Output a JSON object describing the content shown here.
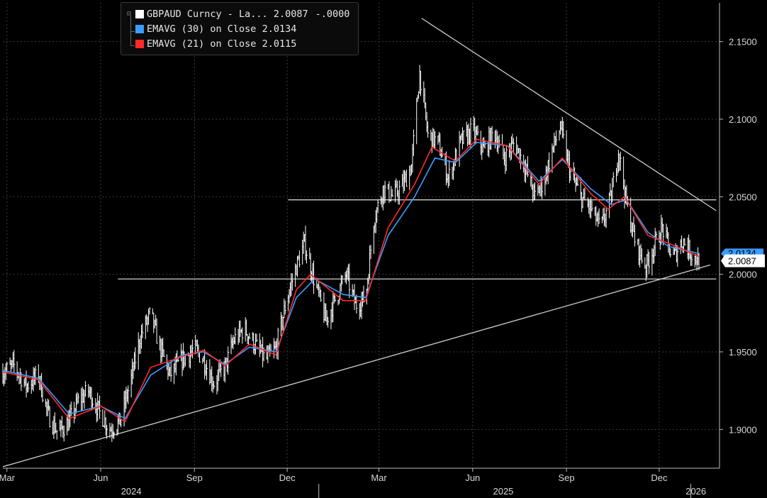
{
  "legend": {
    "rows": [
      {
        "name": "GBPAUD Curncy - La...",
        "value": "2.0087",
        "change": "-.0000",
        "color": "#ffffff"
      },
      {
        "name": "EMAVG (30)  on Close",
        "value": "2.0134",
        "color": "#3b9dff"
      },
      {
        "name": "EMAVG (21)  on Close",
        "value": "2.0115",
        "color": "#ff2a2a"
      }
    ]
  },
  "last_price_label": "2.0087",
  "chart_data": {
    "type": "line",
    "title": "",
    "x_start": "2024-02-26",
    "x_end": "2026-01-09",
    "ylim": [
      1.875,
      2.175
    ],
    "y_ticks": [
      1.9,
      1.95,
      2.0,
      2.05,
      2.1,
      2.15
    ],
    "y_tick_labels": [
      "1.9000",
      "1.9500",
      "2.0000",
      "2.0500",
      "2.1000",
      "2.1500"
    ],
    "month_ticks": [
      {
        "label": "Mar",
        "date": "2024-03-01"
      },
      {
        "label": "Jun",
        "date": "2024-06-01"
      },
      {
        "label": "Sep",
        "date": "2024-09-01"
      },
      {
        "label": "Dec",
        "date": "2024-12-01"
      },
      {
        "label": "Mar",
        "date": "2025-03-01"
      },
      {
        "label": "Jun",
        "date": "2025-06-01"
      },
      {
        "label": "Sep",
        "date": "2025-09-01"
      },
      {
        "label": "Dec",
        "date": "2025-12-01"
      }
    ],
    "year_labels": [
      {
        "label": "2024",
        "date": "2024-07-01"
      },
      {
        "label": "2025",
        "date": "2025-07-01"
      },
      {
        "label": "2026",
        "date": "2026-01-06"
      }
    ],
    "price_series": {
      "name": "GBPAUD Curncy",
      "color": "#ffffff",
      "points": [
        [
          "2024-02-26",
          1.937
        ],
        [
          "2024-03-08",
          1.941
        ],
        [
          "2024-03-20",
          1.928
        ],
        [
          "2024-04-01",
          1.935
        ],
        [
          "2024-04-10",
          1.91
        ],
        [
          "2024-04-20",
          1.898
        ],
        [
          "2024-05-01",
          1.905
        ],
        [
          "2024-05-10",
          1.918
        ],
        [
          "2024-05-20",
          1.925
        ],
        [
          "2024-05-30",
          1.912
        ],
        [
          "2024-06-10",
          1.9
        ],
        [
          "2024-06-20",
          1.905
        ],
        [
          "2024-06-30",
          1.93
        ],
        [
          "2024-07-10",
          1.96
        ],
        [
          "2024-07-20",
          1.975
        ],
        [
          "2024-07-28",
          1.955
        ],
        [
          "2024-08-08",
          1.935
        ],
        [
          "2024-08-20",
          1.945
        ],
        [
          "2024-09-01",
          1.952
        ],
        [
          "2024-09-10",
          1.945
        ],
        [
          "2024-09-20",
          1.93
        ],
        [
          "2024-10-01",
          1.94
        ],
        [
          "2024-10-10",
          1.958
        ],
        [
          "2024-10-20",
          1.965
        ],
        [
          "2024-10-30",
          1.955
        ],
        [
          "2024-11-10",
          1.945
        ],
        [
          "2024-11-20",
          1.952
        ],
        [
          "2024-12-01",
          1.985
        ],
        [
          "2024-12-10",
          2.005
        ],
        [
          "2024-12-18",
          2.02
        ],
        [
          "2024-12-28",
          1.995
        ],
        [
          "2025-01-08",
          1.97
        ],
        [
          "2025-01-18",
          1.985
        ],
        [
          "2025-01-28",
          2.0
        ],
        [
          "2025-02-06",
          1.98
        ],
        [
          "2025-02-16",
          1.985
        ],
        [
          "2025-02-24",
          2.035
        ],
        [
          "2025-03-05",
          2.055
        ],
        [
          "2025-03-15",
          2.05
        ],
        [
          "2025-03-25",
          2.058
        ],
        [
          "2025-04-02",
          2.07
        ],
        [
          "2025-04-10",
          2.13
        ],
        [
          "2025-04-18",
          2.09
        ],
        [
          "2025-04-28",
          2.085
        ],
        [
          "2025-05-08",
          2.062
        ],
        [
          "2025-05-20",
          2.085
        ],
        [
          "2025-06-01",
          2.093
        ],
        [
          "2025-06-12",
          2.08
        ],
        [
          "2025-06-22",
          2.092
        ],
        [
          "2025-07-02",
          2.075
        ],
        [
          "2025-07-12",
          2.085
        ],
        [
          "2025-07-22",
          2.07
        ],
        [
          "2025-08-01",
          2.05
        ],
        [
          "2025-08-10",
          2.06
        ],
        [
          "2025-08-18",
          2.08
        ],
        [
          "2025-08-26",
          2.095
        ],
        [
          "2025-09-05",
          2.065
        ],
        [
          "2025-09-15",
          2.05
        ],
        [
          "2025-09-25",
          2.042
        ],
        [
          "2025-10-05",
          2.03
        ],
        [
          "2025-10-15",
          2.05
        ],
        [
          "2025-10-22",
          2.08
        ],
        [
          "2025-10-30",
          2.045
        ],
        [
          "2025-11-08",
          2.02
        ],
        [
          "2025-11-18",
          2.005
        ],
        [
          "2025-11-26",
          2.018
        ],
        [
          "2025-12-04",
          2.03
        ],
        [
          "2025-12-14",
          2.01
        ],
        [
          "2025-12-24",
          2.022
        ],
        [
          "2026-01-03",
          2.012
        ],
        [
          "2026-01-09",
          2.0087
        ]
      ]
    },
    "ema30": {
      "name": "EMAVG (30)  on Close",
      "color": "#3b9dff",
      "points": [
        [
          "2024-02-26",
          1.938
        ],
        [
          "2024-04-01",
          1.933
        ],
        [
          "2024-05-01",
          1.91
        ],
        [
          "2024-06-01",
          1.915
        ],
        [
          "2024-06-25",
          1.907
        ],
        [
          "2024-07-20",
          1.935
        ],
        [
          "2024-08-20",
          1.948
        ],
        [
          "2024-09-10",
          1.95
        ],
        [
          "2024-10-01",
          1.942
        ],
        [
          "2024-10-25",
          1.953
        ],
        [
          "2024-11-20",
          1.95
        ],
        [
          "2024-12-10",
          1.985
        ],
        [
          "2024-12-28",
          1.997
        ],
        [
          "2025-01-25",
          1.987
        ],
        [
          "2025-02-16",
          1.985
        ],
        [
          "2025-03-10",
          2.025
        ],
        [
          "2025-04-05",
          2.05
        ],
        [
          "2025-04-25",
          2.075
        ],
        [
          "2025-05-15",
          2.072
        ],
        [
          "2025-06-05",
          2.085
        ],
        [
          "2025-07-05",
          2.083
        ],
        [
          "2025-08-05",
          2.06
        ],
        [
          "2025-08-28",
          2.074
        ],
        [
          "2025-09-25",
          2.055
        ],
        [
          "2025-10-15",
          2.045
        ],
        [
          "2025-10-30",
          2.048
        ],
        [
          "2025-11-20",
          2.027
        ],
        [
          "2025-12-10",
          2.018
        ],
        [
          "2026-01-09",
          2.0134
        ]
      ]
    },
    "ema21": {
      "name": "EMAVG (21)  on Close",
      "color": "#ff2a2a",
      "points": [
        [
          "2024-02-26",
          1.937
        ],
        [
          "2024-04-01",
          1.932
        ],
        [
          "2024-05-01",
          1.907
        ],
        [
          "2024-06-01",
          1.915
        ],
        [
          "2024-06-25",
          1.905
        ],
        [
          "2024-07-20",
          1.94
        ],
        [
          "2024-08-20",
          1.947
        ],
        [
          "2024-09-10",
          1.951
        ],
        [
          "2024-10-01",
          1.941
        ],
        [
          "2024-10-25",
          1.955
        ],
        [
          "2024-11-20",
          1.948
        ],
        [
          "2024-12-10",
          1.99
        ],
        [
          "2024-12-24",
          2.0
        ],
        [
          "2025-01-25",
          1.983
        ],
        [
          "2025-02-16",
          1.983
        ],
        [
          "2025-03-10",
          2.03
        ],
        [
          "2025-04-05",
          2.058
        ],
        [
          "2025-04-22",
          2.082
        ],
        [
          "2025-05-15",
          2.073
        ],
        [
          "2025-06-05",
          2.087
        ],
        [
          "2025-07-05",
          2.083
        ],
        [
          "2025-08-05",
          2.058
        ],
        [
          "2025-08-28",
          2.075
        ],
        [
          "2025-09-25",
          2.052
        ],
        [
          "2025-10-12",
          2.042
        ],
        [
          "2025-10-28",
          2.05
        ],
        [
          "2025-11-20",
          2.025
        ],
        [
          "2025-12-10",
          2.02
        ],
        [
          "2026-01-09",
          2.0115
        ]
      ]
    },
    "annotation_lines": [
      {
        "from": [
          "2024-02-26",
          1.876
        ],
        "to": [
          "2026-01-20",
          2.006
        ],
        "color": "#cfcfcf"
      },
      {
        "from": [
          "2025-04-12",
          2.165
        ],
        "to": [
          "2026-01-26",
          2.041
        ],
        "color": "#cfcfcf"
      },
      {
        "from": [
          "2024-12-02",
          2.048
        ],
        "to": [
          "2026-01-26",
          2.048
        ],
        "color": "#cfcfcf"
      },
      {
        "from": [
          "2024-06-18",
          1.997
        ],
        "to": [
          "2026-01-26",
          1.997
        ],
        "color": "#cfcfcf"
      }
    ],
    "last_value": 2.0087,
    "ema30_last_label": "2.0134"
  }
}
